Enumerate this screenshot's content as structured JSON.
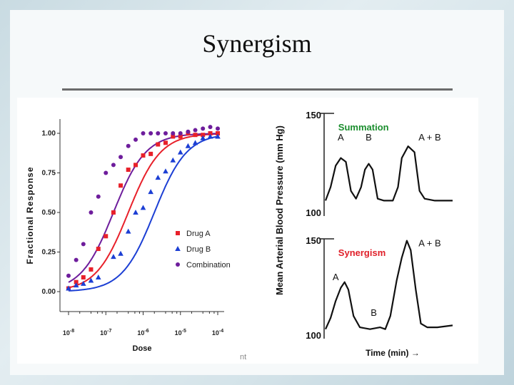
{
  "slide": {
    "title": "Synergism",
    "faint_text": "nt"
  },
  "chart_data": [
    {
      "type": "scatter",
      "xlabel": "Dose",
      "ylabel": "Fractional Response",
      "x_scale": "log",
      "xlim": [
        1e-08,
        0.0001
      ],
      "ylim": [
        0,
        1.0
      ],
      "x_ticks": [
        {
          "value": 1e-08,
          "base": "10",
          "exp": "-8"
        },
        {
          "value": 1e-07,
          "base": "10",
          "exp": "-7"
        },
        {
          "value": 1e-06,
          "base": "10",
          "exp": "-6"
        },
        {
          "value": 1e-05,
          "base": "10",
          "exp": "-5"
        },
        {
          "value": 0.0001,
          "base": "10",
          "exp": "-4"
        }
      ],
      "y_ticks": [
        {
          "value": 0,
          "label": "0.00"
        },
        {
          "value": 0.25,
          "label": "0.25"
        },
        {
          "value": 0.5,
          "label": "0.50"
        },
        {
          "value": 0.75,
          "label": "0.75"
        },
        {
          "value": 1.0,
          "label": "1.00"
        }
      ],
      "legend_position": "bottom-right",
      "series": [
        {
          "name": "Drug A",
          "marker": "square",
          "color": "#e8202a",
          "ec50": 4e-07,
          "hill": 1.0,
          "points": [
            [
              1e-08,
              0.02
            ],
            [
              1.6e-08,
              0.06
            ],
            [
              2.5e-08,
              0.09
            ],
            [
              4e-08,
              0.14
            ],
            [
              6.3e-08,
              0.27
            ],
            [
              1e-07,
              0.35
            ],
            [
              1.6e-07,
              0.5
            ],
            [
              2.5e-07,
              0.67
            ],
            [
              4e-07,
              0.77
            ],
            [
              6.3e-07,
              0.8
            ],
            [
              1e-06,
              0.86
            ],
            [
              1.6e-06,
              0.87
            ],
            [
              2.5e-06,
              0.93
            ],
            [
              4e-06,
              0.94
            ],
            [
              6.3e-06,
              0.98
            ],
            [
              1e-05,
              0.98
            ],
            [
              1.6e-05,
              1.0
            ],
            [
              2.5e-05,
              0.99
            ],
            [
              4e-05,
              0.99
            ],
            [
              6.3e-05,
              1.0
            ],
            [
              0.0001,
              1.0
            ]
          ]
        },
        {
          "name": "Drug B",
          "marker": "triangle",
          "color": "#1c3fd4",
          "ec50": 2e-06,
          "hill": 1.0,
          "points": [
            [
              1e-08,
              0.02
            ],
            [
              1.6e-08,
              0.04
            ],
            [
              2.5e-08,
              0.05
            ],
            [
              4e-08,
              0.07
            ],
            [
              6.3e-08,
              0.09
            ],
            [
              1.6e-07,
              0.22
            ],
            [
              2.5e-07,
              0.24
            ],
            [
              4e-07,
              0.38
            ],
            [
              6.3e-07,
              0.5
            ],
            [
              1e-06,
              0.53
            ],
            [
              1.6e-06,
              0.63
            ],
            [
              2.5e-06,
              0.72
            ],
            [
              4e-06,
              0.76
            ],
            [
              6.3e-06,
              0.83
            ],
            [
              1e-05,
              0.88
            ],
            [
              1.6e-05,
              0.92
            ],
            [
              2.5e-05,
              0.94
            ],
            [
              4e-05,
              0.97
            ],
            [
              6.3e-05,
              0.98
            ],
            [
              0.0001,
              0.98
            ]
          ]
        },
        {
          "name": "Combination",
          "marker": "circle",
          "color": "#6e1d9c",
          "ec50": 1.6e-07,
          "hill": 1.0,
          "points": [
            [
              1e-08,
              0.1
            ],
            [
              1.6e-08,
              0.2
            ],
            [
              2.5e-08,
              0.3
            ],
            [
              4e-08,
              0.5
            ],
            [
              6.3e-08,
              0.6
            ],
            [
              1e-07,
              0.75
            ],
            [
              1.6e-07,
              0.8
            ],
            [
              2.5e-07,
              0.85
            ],
            [
              4e-07,
              0.92
            ],
            [
              6.3e-07,
              0.96
            ],
            [
              1e-06,
              1.0
            ],
            [
              1.6e-06,
              1.0
            ],
            [
              2.5e-06,
              1.0
            ],
            [
              4e-06,
              1.0
            ],
            [
              6.3e-06,
              1.0
            ],
            [
              1e-05,
              1.0
            ],
            [
              1.6e-05,
              1.01
            ],
            [
              2.5e-05,
              1.02
            ],
            [
              4e-05,
              1.03
            ],
            [
              6.3e-05,
              1.04
            ],
            [
              0.0001,
              1.03
            ]
          ]
        }
      ]
    },
    {
      "type": "line",
      "ylabel": "Mean Arterial Blood Pressure (mm Hg)",
      "xlabel": "Time (min) →",
      "panels": [
        {
          "title": "Summation",
          "title_color": "#1b8e2e",
          "y_top_label": "150",
          "y_bottom_label": "100",
          "ylim": [
            100,
            150
          ],
          "annotations": [
            {
              "text": "A",
              "x": 0.12,
              "y": 136
            },
            {
              "text": "B",
              "x": 0.34,
              "y": 136
            },
            {
              "text": "A + B",
              "x": 0.82,
              "y": 136
            }
          ],
          "trace": [
            [
              0,
              105
            ],
            [
              0.04,
              112
            ],
            [
              0.08,
              123
            ],
            [
              0.12,
              127
            ],
            [
              0.16,
              125
            ],
            [
              0.2,
              110
            ],
            [
              0.24,
              106
            ],
            [
              0.28,
              112
            ],
            [
              0.31,
              121
            ],
            [
              0.34,
              124
            ],
            [
              0.37,
              121
            ],
            [
              0.41,
              106
            ],
            [
              0.46,
              105
            ],
            [
              0.53,
              105
            ],
            [
              0.57,
              112
            ],
            [
              0.6,
              127
            ],
            [
              0.65,
              133
            ],
            [
              0.7,
              130
            ],
            [
              0.74,
              110
            ],
            [
              0.78,
              106
            ],
            [
              0.86,
              105
            ],
            [
              1,
              105
            ]
          ]
        },
        {
          "title": "Synergism",
          "title_color": "#e0202a",
          "y_top_label": "150",
          "y_bottom_label": "100",
          "ylim": [
            100,
            150
          ],
          "annotations": [
            {
              "text": "A",
              "x": 0.08,
              "y": 128
            },
            {
              "text": "B",
              "x": 0.38,
              "y": 109
            },
            {
              "text": "A + B",
              "x": 0.82,
              "y": 146
            }
          ],
          "trace": [
            [
              0,
              102
            ],
            [
              0.04,
              108
            ],
            [
              0.08,
              117
            ],
            [
              0.12,
              124
            ],
            [
              0.15,
              127
            ],
            [
              0.18,
              123
            ],
            [
              0.22,
              109
            ],
            [
              0.27,
              103
            ],
            [
              0.35,
              102
            ],
            [
              0.43,
              103
            ],
            [
              0.47,
              102
            ],
            [
              0.51,
              109
            ],
            [
              0.56,
              128
            ],
            [
              0.6,
              140
            ],
            [
              0.64,
              149
            ],
            [
              0.67,
              144
            ],
            [
              0.71,
              123
            ],
            [
              0.75,
              105
            ],
            [
              0.8,
              103
            ],
            [
              0.88,
              103
            ],
            [
              1,
              104
            ]
          ]
        }
      ]
    }
  ]
}
